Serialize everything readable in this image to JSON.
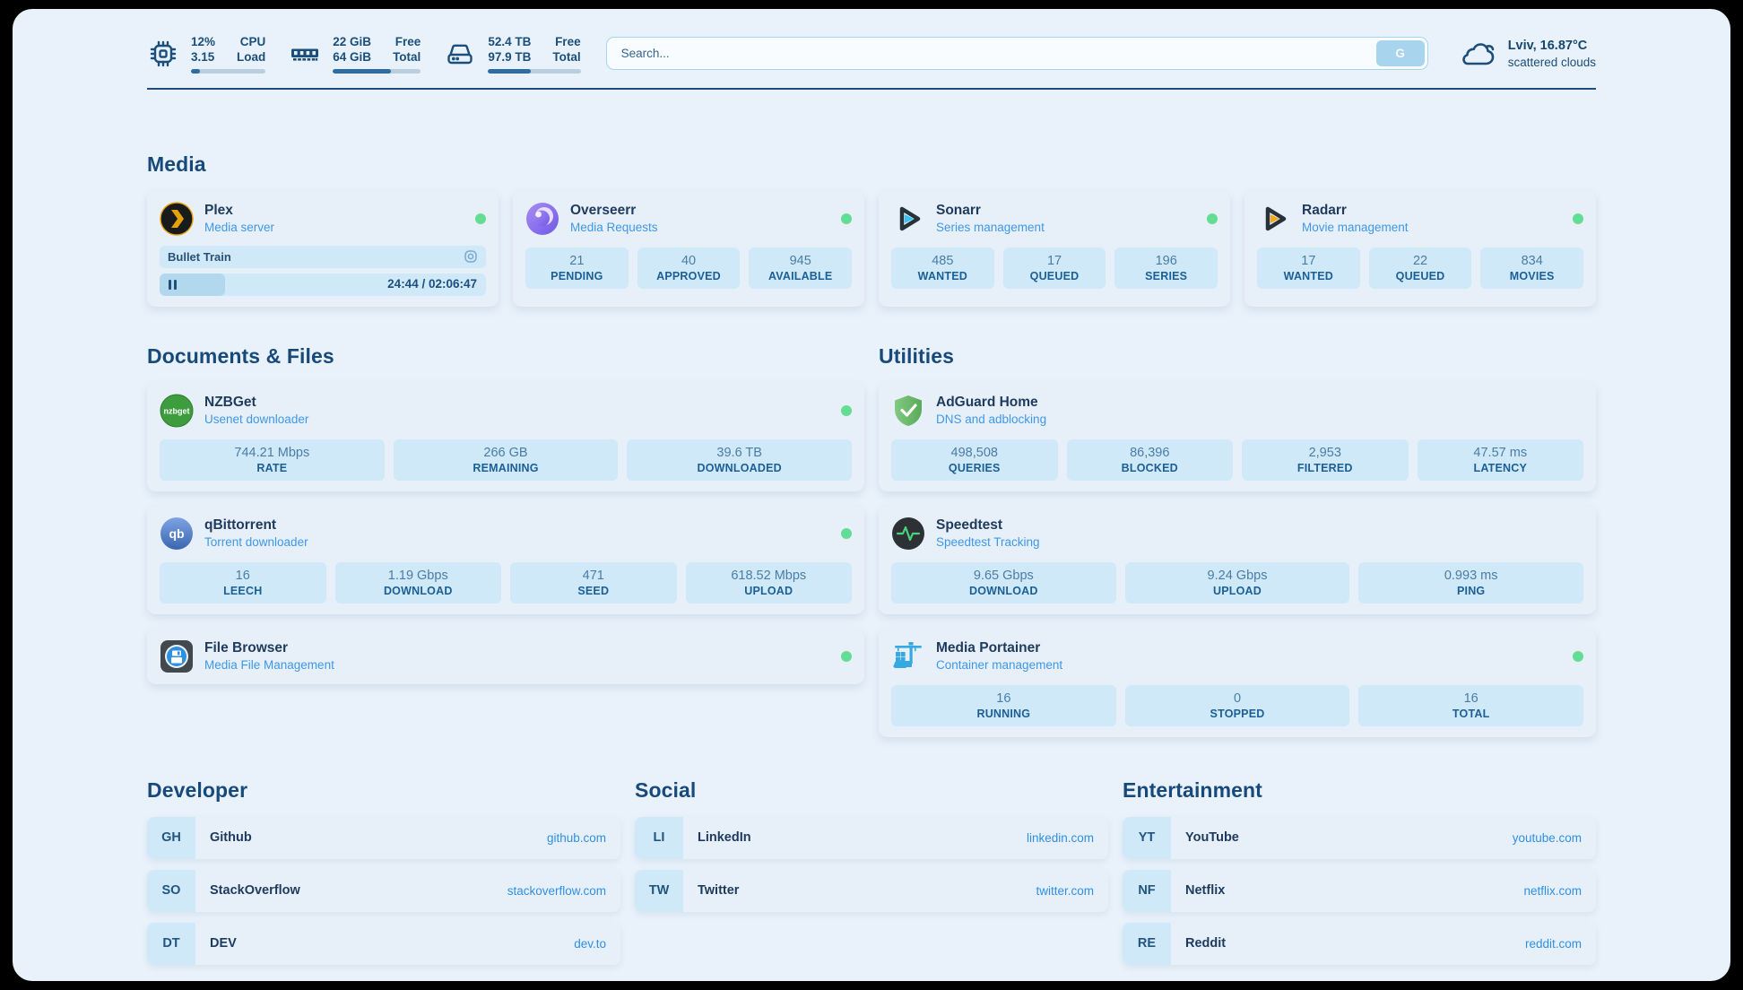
{
  "topbar": {
    "resources": [
      {
        "icon": "cpu-icon",
        "values": [
          "12%",
          "3.15"
        ],
        "labels": [
          "CPU",
          "Load"
        ],
        "progress": 12
      },
      {
        "icon": "memory-icon",
        "values": [
          "22 GiB",
          "64 GiB"
        ],
        "labels": [
          "Free",
          "Total"
        ],
        "progress": 66
      },
      {
        "icon": "disk-icon",
        "values": [
          "52.4 TB",
          "97.9 TB"
        ],
        "labels": [
          "Free",
          "Total"
        ],
        "progress": 46
      }
    ],
    "search": {
      "placeholder": "Search...",
      "button_label": "G"
    },
    "weather": {
      "title": "Lviv, 16.87°C",
      "subtitle": "scattered clouds",
      "icon": "cloud-icon"
    }
  },
  "sections": {
    "media": {
      "title": "Media",
      "cards": [
        {
          "name": "Plex",
          "subtitle": "Media server",
          "icon": "plex-icon",
          "online": true,
          "now_playing": {
            "title": "Bullet Train",
            "time": "24:44 / 02:06:47",
            "progress": 20
          }
        },
        {
          "name": "Overseerr",
          "subtitle": "Media Requests",
          "icon": "overseerr-icon",
          "online": true,
          "stats": [
            {
              "value": "21",
              "label": "PENDING"
            },
            {
              "value": "40",
              "label": "APPROVED"
            },
            {
              "value": "945",
              "label": "AVAILABLE"
            }
          ]
        },
        {
          "name": "Sonarr",
          "subtitle": "Series management",
          "icon": "sonarr-icon",
          "online": true,
          "stats": [
            {
              "value": "485",
              "label": "WANTED"
            },
            {
              "value": "17",
              "label": "QUEUED"
            },
            {
              "value": "196",
              "label": "SERIES"
            }
          ]
        },
        {
          "name": "Radarr",
          "subtitle": "Movie management",
          "icon": "radarr-icon",
          "online": true,
          "stats": [
            {
              "value": "17",
              "label": "WANTED"
            },
            {
              "value": "22",
              "label": "QUEUED"
            },
            {
              "value": "834",
              "label": "MOVIES"
            }
          ]
        }
      ]
    },
    "documents": {
      "title": "Documents & Files",
      "cards": [
        {
          "name": "NZBGet",
          "subtitle": "Usenet downloader",
          "icon": "nzbget-icon",
          "online": true,
          "stats": [
            {
              "value": "744.21 Mbps",
              "label": "RATE"
            },
            {
              "value": "266 GB",
              "label": "REMAINING"
            },
            {
              "value": "39.6 TB",
              "label": "DOWNLOADED"
            }
          ]
        },
        {
          "name": "qBittorrent",
          "subtitle": "Torrent downloader",
          "icon": "qbittorrent-icon",
          "online": true,
          "stats": [
            {
              "value": "16",
              "label": "LEECH"
            },
            {
              "value": "1.19 Gbps",
              "label": "DOWNLOAD"
            },
            {
              "value": "471",
              "label": "SEED"
            },
            {
              "value": "618.52 Mbps",
              "label": "UPLOAD"
            }
          ]
        },
        {
          "name": "File Browser",
          "subtitle": "Media File Management",
          "icon": "filebrowser-icon",
          "online": true
        }
      ]
    },
    "utilities": {
      "title": "Utilities",
      "cards": [
        {
          "name": "AdGuard Home",
          "subtitle": "DNS and adblocking",
          "icon": "adguard-icon",
          "online": false,
          "stats": [
            {
              "value": "498,508",
              "label": "QUERIES"
            },
            {
              "value": "86,396",
              "label": "BLOCKED"
            },
            {
              "value": "2,953",
              "label": "FILTERED"
            },
            {
              "value": "47.57 ms",
              "label": "LATENCY"
            }
          ]
        },
        {
          "name": "Speedtest",
          "subtitle": "Speedtest Tracking",
          "icon": "speedtest-icon",
          "online": false,
          "stats": [
            {
              "value": "9.65 Gbps",
              "label": "DOWNLOAD"
            },
            {
              "value": "9.24 Gbps",
              "label": "UPLOAD"
            },
            {
              "value": "0.993 ms",
              "label": "PING"
            }
          ]
        },
        {
          "name": "Media Portainer",
          "subtitle": "Container management",
          "icon": "portainer-icon",
          "online": true,
          "stats": [
            {
              "value": "16",
              "label": "RUNNING"
            },
            {
              "value": "0",
              "label": "STOPPED"
            },
            {
              "value": "16",
              "label": "TOTAL"
            }
          ]
        }
      ]
    }
  },
  "bookmarks": {
    "groups": [
      {
        "title": "Developer",
        "items": [
          {
            "abbr": "GH",
            "name": "Github",
            "url": "github.com"
          },
          {
            "abbr": "SO",
            "name": "StackOverflow",
            "url": "stackoverflow.com"
          },
          {
            "abbr": "DT",
            "name": "DEV",
            "url": "dev.to"
          }
        ]
      },
      {
        "title": "Social",
        "items": [
          {
            "abbr": "LI",
            "name": "LinkedIn",
            "url": "linkedin.com"
          },
          {
            "abbr": "TW",
            "name": "Twitter",
            "url": "twitter.com"
          }
        ]
      },
      {
        "title": "Entertainment",
        "items": [
          {
            "abbr": "YT",
            "name": "YouTube",
            "url": "youtube.com"
          },
          {
            "abbr": "NF",
            "name": "Netflix",
            "url": "netflix.com"
          },
          {
            "abbr": "RE",
            "name": "Reddit",
            "url": "reddit.com"
          }
        ]
      }
    ]
  },
  "colors": {
    "page_background": "#e9f2fb",
    "card_background": "#e7f0f9",
    "stat_background": "#cfe9f8",
    "accent_navy": "#1d4e7c",
    "subtitle_blue": "#3e97e8",
    "link_blue": "#2f8fe3",
    "status_online_green": "#63dd94"
  }
}
